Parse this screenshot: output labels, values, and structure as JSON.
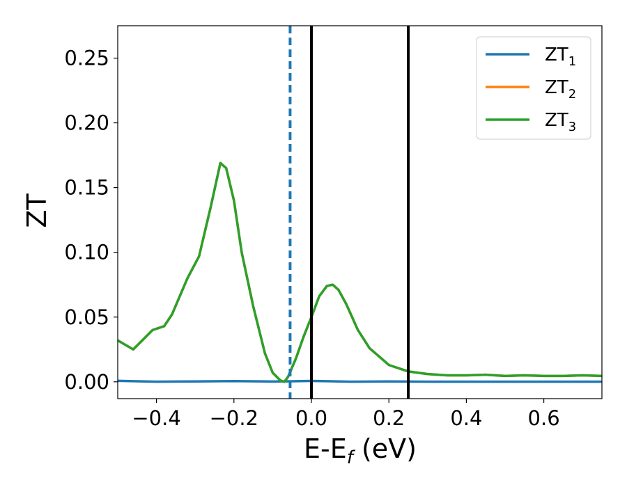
{
  "chart_data": {
    "type": "line",
    "xlabel": "E-E",
    "xlabel_sub": "f",
    "xlabel_unit": " (eV)",
    "ylabel": "ZT",
    "xlim": [
      -0.5,
      0.75
    ],
    "ylim": [
      -0.013,
      0.275
    ],
    "x_ticks": [
      -0.4,
      -0.2,
      0.0,
      0.2,
      0.4,
      0.6
    ],
    "x_tick_labels": [
      "−0.4",
      "−0.2",
      "0.0",
      "0.2",
      "0.4",
      "0.6"
    ],
    "y_ticks": [
      0.0,
      0.05,
      0.1,
      0.15,
      0.2,
      0.25
    ],
    "y_tick_labels": [
      "0.00",
      "0.05",
      "0.10",
      "0.15",
      "0.20",
      "0.25"
    ],
    "grid": false,
    "legend_position": "top-right",
    "series": [
      {
        "name_base": "ZT",
        "name_sub": "1",
        "color": "#1f77b4",
        "x": [
          -0.5,
          -0.45,
          -0.4,
          -0.3,
          -0.2,
          -0.1,
          -0.05,
          0.0,
          0.05,
          0.1,
          0.2,
          0.3,
          0.4,
          0.5,
          0.6,
          0.75
        ],
        "y": [
          0.0008,
          0.0004,
          0.0001,
          0.0003,
          0.0006,
          0.0002,
          0.0004,
          0.0007,
          0.0004,
          0.0001,
          0.0003,
          0.0001,
          0.0001,
          0.0001,
          0.0001,
          0.0001
        ]
      },
      {
        "name_base": "ZT",
        "name_sub": "2",
        "color": "#ff7f0e",
        "x": [
          -0.5,
          -0.46,
          -0.44,
          -0.41,
          -0.38,
          -0.36,
          -0.32,
          -0.29,
          -0.26,
          -0.235,
          -0.22,
          -0.2,
          -0.18,
          -0.15,
          -0.12,
          -0.1,
          -0.08,
          -0.07,
          -0.06,
          -0.04,
          -0.02,
          0.0,
          0.02,
          0.04,
          0.055,
          0.07,
          0.09,
          0.12,
          0.15,
          0.2,
          0.25,
          0.3,
          0.35,
          0.4,
          0.45,
          0.5,
          0.55,
          0.6,
          0.65,
          0.7,
          0.75
        ],
        "y": [
          0.032,
          0.025,
          0.031,
          0.04,
          0.043,
          0.052,
          0.08,
          0.097,
          0.135,
          0.169,
          0.165,
          0.14,
          0.1,
          0.058,
          0.022,
          0.007,
          0.001,
          0.0,
          0.004,
          0.018,
          0.035,
          0.05,
          0.066,
          0.074,
          0.075,
          0.071,
          0.06,
          0.04,
          0.026,
          0.013,
          0.008,
          0.006,
          0.005,
          0.005,
          0.0055,
          0.0045,
          0.005,
          0.0045,
          0.0045,
          0.005,
          0.0045
        ]
      },
      {
        "name_base": "ZT",
        "name_sub": "3",
        "color": "#2ca02c",
        "x": [
          -0.5,
          -0.46,
          -0.44,
          -0.41,
          -0.38,
          -0.36,
          -0.32,
          -0.29,
          -0.26,
          -0.235,
          -0.22,
          -0.2,
          -0.18,
          -0.15,
          -0.12,
          -0.1,
          -0.08,
          -0.07,
          -0.06,
          -0.04,
          -0.02,
          0.0,
          0.02,
          0.04,
          0.055,
          0.07,
          0.09,
          0.12,
          0.15,
          0.2,
          0.25,
          0.3,
          0.35,
          0.4,
          0.45,
          0.5,
          0.55,
          0.6,
          0.65,
          0.7,
          0.75
        ],
        "y": [
          0.032,
          0.025,
          0.031,
          0.04,
          0.043,
          0.052,
          0.08,
          0.097,
          0.135,
          0.169,
          0.165,
          0.14,
          0.1,
          0.058,
          0.022,
          0.007,
          0.001,
          0.0,
          0.004,
          0.018,
          0.035,
          0.05,
          0.066,
          0.074,
          0.075,
          0.071,
          0.06,
          0.04,
          0.026,
          0.013,
          0.008,
          0.006,
          0.005,
          0.005,
          0.0055,
          0.0045,
          0.005,
          0.0045,
          0.0045,
          0.005,
          0.0045
        ]
      }
    ],
    "vlines": [
      {
        "x": -0.055,
        "color": "#1f77b4",
        "style": "dashed"
      },
      {
        "x": 0.0,
        "color": "#000000",
        "style": "solid"
      },
      {
        "x": 0.25,
        "color": "#000000",
        "style": "solid"
      }
    ]
  }
}
